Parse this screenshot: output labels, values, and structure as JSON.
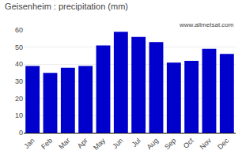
{
  "chart_data": {
    "type": "bar",
    "title": "Geisenheim : precipitation (mm)",
    "categories": [
      "Jan",
      "Feb",
      "Mar",
      "Apr",
      "May",
      "Jun",
      "Jul",
      "Aug",
      "Sep",
      "Oct",
      "Nov",
      "Dec"
    ],
    "values": [
      39,
      35,
      38,
      39,
      51,
      59,
      56,
      53,
      41,
      42,
      49,
      46
    ],
    "color": "#0000CC",
    "ylim": [
      0,
      60
    ],
    "yticks": [
      0,
      10,
      20,
      30,
      40,
      50,
      60
    ],
    "grid": true,
    "annotations": [
      "www.allmetsat.com"
    ]
  }
}
